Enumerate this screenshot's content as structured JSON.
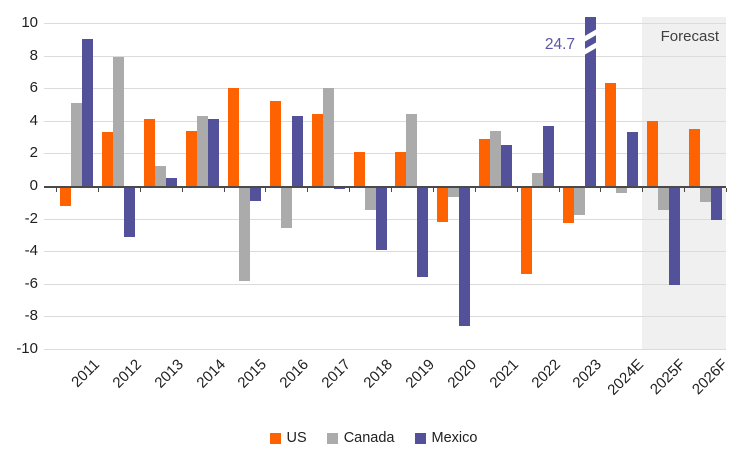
{
  "chart_data": {
    "type": "bar",
    "title": "",
    "xlabel": "",
    "ylabel": "",
    "categories": [
      "2011",
      "2012",
      "2013",
      "2014",
      "2015",
      "2016",
      "2017",
      "2018",
      "2019",
      "2020",
      "2021",
      "2022",
      "2023",
      "2024E",
      "2025F",
      "2026F"
    ],
    "series": [
      {
        "name": "US",
        "color": "#FF6200",
        "values": [
          -1.2,
          3.3,
          4.1,
          3.4,
          6.0,
          5.2,
          4.4,
          2.1,
          2.1,
          -2.2,
          2.9,
          -5.4,
          -2.3,
          6.3,
          4.0,
          3.5
        ]
      },
      {
        "name": "Canada",
        "color": "#ABABAB",
        "values": [
          5.1,
          7.9,
          1.2,
          4.3,
          -5.8,
          -2.6,
          6.0,
          -1.5,
          4.4,
          -0.7,
          3.4,
          0.8,
          -1.8,
          -0.4,
          -1.5,
          -1.0
        ]
      },
      {
        "name": "Mexico",
        "color": "#525199",
        "values": [
          9.0,
          -3.1,
          0.5,
          4.1,
          -0.9,
          4.3,
          -0.2,
          -3.9,
          -5.6,
          -8.6,
          2.5,
          3.7,
          24.7,
          3.3,
          -6.1,
          -2.1
        ]
      }
    ],
    "ylim": [
      -10,
      10
    ],
    "yticks": [
      10,
      8,
      6,
      4,
      2,
      0,
      -2,
      -4,
      -6,
      -8,
      -10
    ],
    "grid": "horizontal",
    "legend_position": "bottom-center",
    "forecast": {
      "label": "Forecast",
      "categories": [
        "2025F",
        "2026F"
      ]
    },
    "annotation": {
      "text": "24.7",
      "series": "Mexico",
      "category": "2023",
      "note": "bar exceeds axis maximum and is clipped with break marks"
    }
  },
  "colors": {
    "background": "#FFFFFF",
    "gridline": "#DBDBDB",
    "axis_line": "#4A4A4A",
    "text": "#1F1F1F",
    "annotation_text": "#5956AC",
    "forecast_band": "#F0F0F1",
    "forecast_text": "#404040"
  }
}
